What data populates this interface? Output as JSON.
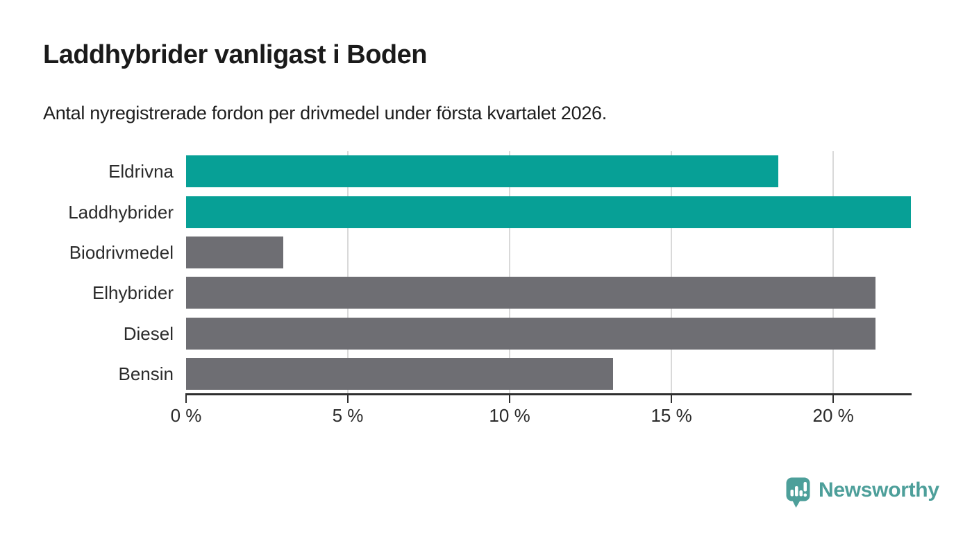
{
  "header": {
    "title": "Laddhybrider vanligast i Boden",
    "subtitle": "Antal nyregistrerade fordon per drivmedel under första kvartalet 2026."
  },
  "chart_data": {
    "type": "bar",
    "orientation": "horizontal",
    "title": "Laddhybrider vanligast i Boden",
    "subtitle": "Antal nyregistrerade fordon per drivmedel under första kvartalet 2026.",
    "categories": [
      "Eldrivna",
      "Laddhybrider",
      "Biodrivmedel",
      "Elhybrider",
      "Diesel",
      "Bensin"
    ],
    "values": [
      18.3,
      22.4,
      3.0,
      21.3,
      21.3,
      13.2
    ],
    "unit": "%",
    "xlim": [
      0,
      22.4
    ],
    "x_ticks": [
      0,
      5,
      10,
      15,
      20
    ],
    "x_tick_labels": [
      "0 %",
      "5 %",
      "10 %",
      "15 %",
      "20 %"
    ],
    "bar_colors": [
      "#07a096",
      "#07a096",
      "#6e6e73",
      "#6e6e73",
      "#6e6e73",
      "#6e6e73"
    ],
    "grid": "vertical",
    "legend": "none"
  },
  "colors": {
    "highlight": "#07a096",
    "default_bar": "#6e6e73",
    "gridline": "#d9d9d9",
    "axis": "#2f2f2f",
    "title_text": "#1a1a1a",
    "logo": "#4d9f9a"
  },
  "footer": {
    "brand": "Newsworthy"
  }
}
